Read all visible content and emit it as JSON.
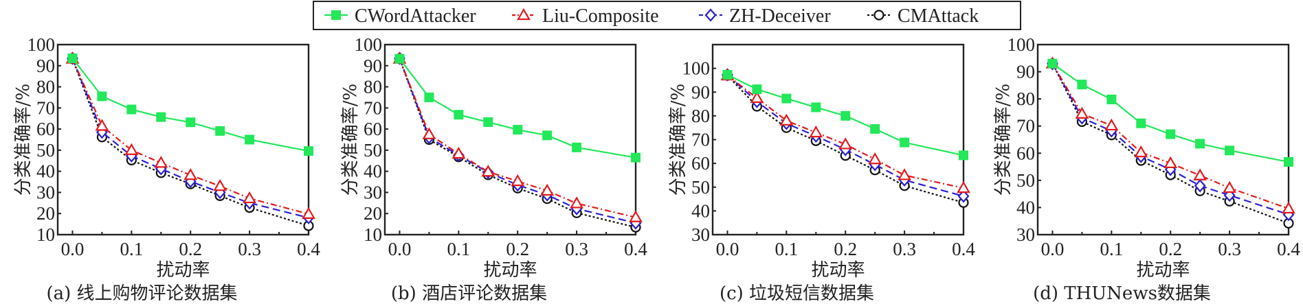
{
  "legend": {
    "entries": [
      {
        "name": "CWordAttacker",
        "color": "#22e85a",
        "marker": "filled-square",
        "dash": "solid"
      },
      {
        "name": "Liu-Composite",
        "color": "#e41a1c",
        "marker": "triangle",
        "dash": "dash-dot"
      },
      {
        "name": "ZH-Deceiver",
        "color": "#2b1fd6",
        "marker": "diamond",
        "dash": "dashed"
      },
      {
        "name": "CMAttack",
        "color": "#111111",
        "marker": "circle",
        "dash": "dotted"
      }
    ],
    "placement": "top-center"
  },
  "chart_data": [
    {
      "type": "line",
      "caption": "(a) 线上购物评论数据集",
      "xlabel": "扰动率",
      "ylabel": "分类准确率/%",
      "x": [
        0.0,
        0.05,
        0.1,
        0.15,
        0.2,
        0.25,
        0.3,
        0.4
      ],
      "xticks": [
        "0.0",
        "0.1",
        "0.2",
        "0.3",
        "0.4"
      ],
      "yticks": [
        "10",
        "20",
        "30",
        "40",
        "50",
        "60",
        "70",
        "80",
        "90",
        "100"
      ],
      "xlim": [
        -0.025,
        0.4
      ],
      "ylim": [
        10,
        100
      ],
      "series": [
        {
          "name": "CWordAttacker",
          "values": [
            93.5,
            75.5,
            69.3,
            65.7,
            63.2,
            59.1,
            55.0,
            49.6
          ]
        },
        {
          "name": "Liu-Composite",
          "values": [
            93.3,
            61.5,
            50.0,
            44.0,
            38.2,
            33.0,
            27.2,
            19.8
          ]
        },
        {
          "name": "ZH-Deceiver",
          "values": [
            93.5,
            58.5,
            47.3,
            41.2,
            35.2,
            30.0,
            25.0,
            18.0
          ]
        },
        {
          "name": "CMAttack",
          "values": [
            93.3,
            56.2,
            45.3,
            39.3,
            34.0,
            28.4,
            22.8,
            14.2
          ]
        }
      ]
    },
    {
      "type": "line",
      "caption": "(b) 酒店评论数据集",
      "xlabel": "扰动率",
      "ylabel": "分类准确率/%",
      "x": [
        0.0,
        0.05,
        0.1,
        0.15,
        0.2,
        0.25,
        0.3,
        0.4
      ],
      "xticks": [
        "0.0",
        "0.1",
        "0.2",
        "0.3",
        "0.4"
      ],
      "yticks": [
        "10",
        "20",
        "30",
        "40",
        "50",
        "60",
        "70",
        "80",
        "90",
        "100"
      ],
      "xlim": [
        -0.025,
        0.4
      ],
      "ylim": [
        10,
        100
      ],
      "series": [
        {
          "name": "CWordAttacker",
          "values": [
            93.3,
            75.0,
            66.8,
            63.3,
            59.7,
            57.0,
            51.3,
            46.5
          ]
        },
        {
          "name": "Liu-Composite",
          "values": [
            93.3,
            57.5,
            48.3,
            39.8,
            35.3,
            30.8,
            24.8,
            18.2
          ]
        },
        {
          "name": "ZH-Deceiver",
          "values": [
            93.5,
            56.0,
            47.6,
            39.5,
            33.5,
            28.8,
            22.3,
            15.5
          ]
        },
        {
          "name": "CMAttack",
          "values": [
            93.3,
            55.0,
            46.8,
            38.3,
            32.0,
            27.0,
            20.3,
            13.5
          ]
        }
      ]
    },
    {
      "type": "line",
      "caption": "(c) 垃圾短信数据集",
      "xlabel": "扰动率",
      "ylabel": "分类准确率/%",
      "x": [
        0.0,
        0.05,
        0.1,
        0.15,
        0.2,
        0.25,
        0.3,
        0.4
      ],
      "xticks": [
        "0.0",
        "0.1",
        "0.2",
        "0.3",
        "0.4"
      ],
      "yticks": [
        "30",
        "40",
        "50",
        "60",
        "70",
        "80",
        "90",
        "100"
      ],
      "xlim": [
        -0.025,
        0.4
      ],
      "ylim": [
        30,
        110
      ],
      "series": [
        {
          "name": "CWordAttacker",
          "values": [
            97.3,
            91.2,
            87.3,
            83.6,
            80.0,
            74.5,
            68.8,
            63.4
          ]
        },
        {
          "name": "Liu-Composite",
          "values": [
            97.0,
            87.5,
            78.0,
            73.0,
            68.0,
            61.7,
            55.0,
            49.6
          ]
        },
        {
          "name": "ZH-Deceiver",
          "values": [
            97.3,
            86.0,
            76.8,
            71.5,
            65.8,
            59.5,
            53.0,
            46.2
          ]
        },
        {
          "name": "CMAttack",
          "values": [
            97.0,
            84.0,
            75.0,
            69.5,
            63.3,
            57.2,
            50.6,
            43.5
          ]
        }
      ]
    },
    {
      "type": "line",
      "caption": "(d) THUNews数据集",
      "xlabel": "扰动率",
      "ylabel": "分类准确率/%",
      "x": [
        0.0,
        0.05,
        0.1,
        0.15,
        0.2,
        0.25,
        0.3,
        0.4
      ],
      "xticks": [
        "0.0",
        "0.1",
        "0.2",
        "0.3",
        "0.4"
      ],
      "yticks": [
        "30",
        "40",
        "50",
        "60",
        "70",
        "80",
        "90",
        "100"
      ],
      "xlim": [
        -0.025,
        0.4
      ],
      "ylim": [
        30,
        100
      ],
      "series": [
        {
          "name": "CWordAttacker",
          "values": [
            93.0,
            85.3,
            79.8,
            71.0,
            67.0,
            63.5,
            61.0,
            56.8
          ]
        },
        {
          "name": "Liu-Composite",
          "values": [
            93.0,
            74.5,
            70.2,
            60.3,
            56.3,
            51.8,
            47.2,
            39.6
          ]
        },
        {
          "name": "ZH-Deceiver",
          "values": [
            93.0,
            73.0,
            68.2,
            58.8,
            54.0,
            48.0,
            44.5,
            37.4
          ]
        },
        {
          "name": "CMAttack",
          "values": [
            93.0,
            71.6,
            66.7,
            57.3,
            52.0,
            46.1,
            42.3,
            34.2
          ]
        }
      ]
    }
  ]
}
